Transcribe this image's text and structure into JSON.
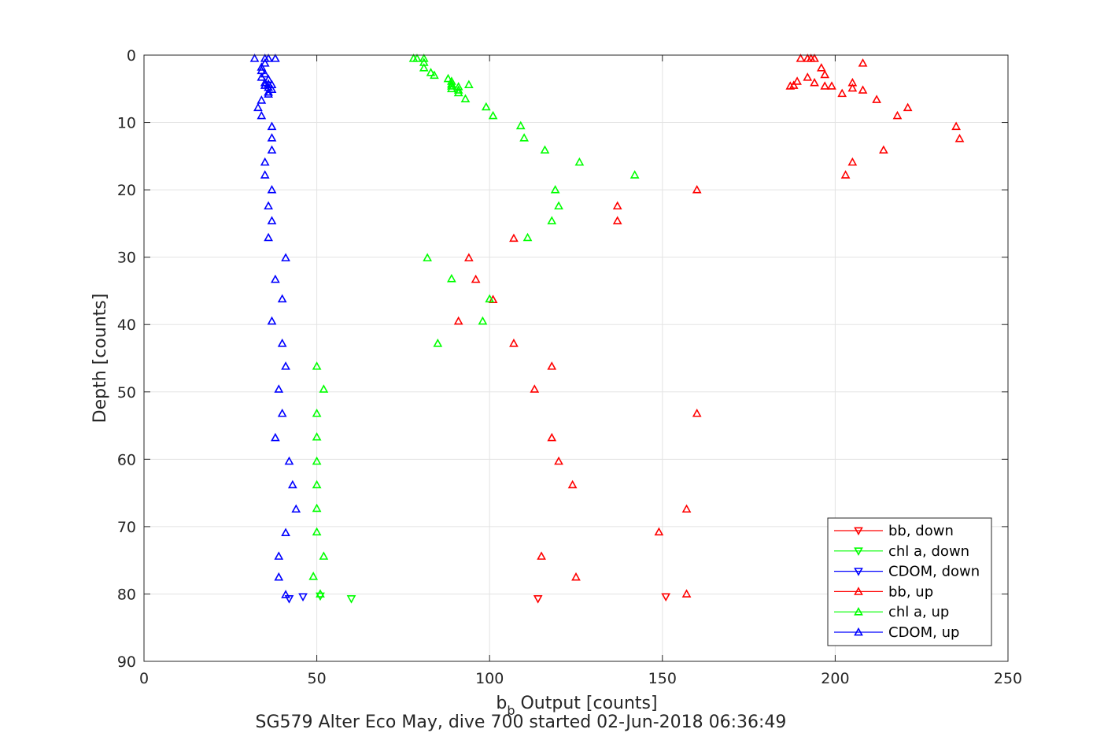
{
  "chart_data": {
    "type": "scatter",
    "title": "",
    "xlabel": "b_b Output [counts]",
    "xlabel_main": "b",
    "xlabel_sub": "b",
    "xlabel_rest": " Output [counts]",
    "ylabel": "Depth [counts]",
    "caption": "SG579 Alter Eco May, dive 700 started 02-Jun-2018 06:36:49",
    "xlim": [
      0,
      250
    ],
    "ylim": [
      0,
      90
    ],
    "y_reversed": true,
    "grid": true,
    "xticks": [
      0,
      50,
      100,
      150,
      200,
      250
    ],
    "yticks": [
      0,
      10,
      20,
      30,
      40,
      50,
      60,
      70,
      80,
      90
    ],
    "legend_position": "bottom-right",
    "series": [
      {
        "name": "bb, down",
        "color": "#ff0000",
        "marker": "triangle-down",
        "points": [
          [
            151,
            80.4
          ],
          [
            114,
            80.7
          ]
        ]
      },
      {
        "name": "chl a, down",
        "color": "#00ff00",
        "marker": "triangle-down",
        "points": [
          [
            51,
            80.3
          ],
          [
            60,
            80.7
          ]
        ]
      },
      {
        "name": "CDOM, down",
        "color": "#0000ff",
        "marker": "triangle-down",
        "points": [
          [
            46,
            80.4
          ],
          [
            42,
            80.7
          ]
        ]
      },
      {
        "name": "bb, up",
        "color": "#ff0000",
        "marker": "triangle-up",
        "points": [
          [
            190,
            0.5
          ],
          [
            192,
            0.5
          ],
          [
            193,
            0.5
          ],
          [
            194,
            0.5
          ],
          [
            208,
            1.2
          ],
          [
            196,
            1.9
          ],
          [
            197,
            2.9
          ],
          [
            192,
            3.3
          ],
          [
            189,
            3.9
          ],
          [
            194,
            4.1
          ],
          [
            205,
            4.1
          ],
          [
            188,
            4.5
          ],
          [
            187,
            4.6
          ],
          [
            197,
            4.6
          ],
          [
            199,
            4.6
          ],
          [
            205,
            4.9
          ],
          [
            208,
            5.2
          ],
          [
            202,
            5.7
          ],
          [
            212,
            6.6
          ],
          [
            221,
            7.8
          ],
          [
            218,
            9.0
          ],
          [
            235,
            10.6
          ],
          [
            236,
            12.4
          ],
          [
            214,
            14.1
          ],
          [
            205,
            15.9
          ],
          [
            203,
            17.8
          ],
          [
            160,
            20.0
          ],
          [
            137,
            22.4
          ],
          [
            137,
            24.6
          ],
          [
            107,
            27.2
          ],
          [
            94,
            30.1
          ],
          [
            96,
            33.3
          ],
          [
            101,
            36.3
          ],
          [
            91,
            39.5
          ],
          [
            107,
            42.8
          ],
          [
            118,
            46.2
          ],
          [
            113,
            49.6
          ],
          [
            160,
            53.2
          ],
          [
            118,
            56.8
          ],
          [
            120,
            60.3
          ],
          [
            124,
            63.8
          ],
          [
            157,
            67.4
          ],
          [
            149,
            70.8
          ],
          [
            115,
            74.4
          ],
          [
            125,
            77.5
          ],
          [
            157,
            80.0
          ]
        ]
      },
      {
        "name": "chl a, up",
        "color": "#00ff00",
        "marker": "triangle-up",
        "points": [
          [
            78,
            0.5
          ],
          [
            79,
            0.5
          ],
          [
            81,
            0.5
          ],
          [
            81,
            1.1
          ],
          [
            81,
            1.9
          ],
          [
            83,
            2.6
          ],
          [
            84,
            3.0
          ],
          [
            88,
            3.5
          ],
          [
            89,
            3.9
          ],
          [
            89,
            4.3
          ],
          [
            89,
            4.6
          ],
          [
            89,
            5.0
          ],
          [
            91,
            4.7
          ],
          [
            94,
            4.4
          ],
          [
            91,
            5.2
          ],
          [
            91,
            5.6
          ],
          [
            93,
            6.5
          ],
          [
            99,
            7.7
          ],
          [
            101,
            9.0
          ],
          [
            109,
            10.5
          ],
          [
            110,
            12.3
          ],
          [
            116,
            14.1
          ],
          [
            126,
            15.9
          ],
          [
            142,
            17.8
          ],
          [
            119,
            20.0
          ],
          [
            120,
            22.4
          ],
          [
            118,
            24.6
          ],
          [
            111,
            27.1
          ],
          [
            82,
            30.1
          ],
          [
            89,
            33.2
          ],
          [
            100,
            36.2
          ],
          [
            98,
            39.5
          ],
          [
            85,
            42.8
          ],
          [
            50,
            46.2
          ],
          [
            52,
            49.6
          ],
          [
            50,
            53.2
          ],
          [
            50,
            56.7
          ],
          [
            50,
            60.3
          ],
          [
            50,
            63.8
          ],
          [
            50,
            67.3
          ],
          [
            50,
            70.8
          ],
          [
            52,
            74.4
          ],
          [
            49,
            77.4
          ],
          [
            51,
            80.0
          ]
        ]
      },
      {
        "name": "CDOM, up",
        "color": "#0000ff",
        "marker": "triangle-up",
        "points": [
          [
            32,
            0.5
          ],
          [
            35,
            0.5
          ],
          [
            36,
            0.5
          ],
          [
            38,
            0.5
          ],
          [
            35,
            1.2
          ],
          [
            34,
            1.8
          ],
          [
            34,
            2.3
          ],
          [
            35,
            2.8
          ],
          [
            34,
            3.3
          ],
          [
            36,
            3.6
          ],
          [
            35,
            4.1
          ],
          [
            35,
            4.5
          ],
          [
            36,
            4.3
          ],
          [
            37,
            4.4
          ],
          [
            36,
            4.8
          ],
          [
            37,
            5.1
          ],
          [
            36,
            5.5
          ],
          [
            36,
            5.8
          ],
          [
            34,
            6.7
          ],
          [
            33,
            7.8
          ],
          [
            34,
            9.0
          ],
          [
            37,
            10.6
          ],
          [
            37,
            12.3
          ],
          [
            37,
            14.1
          ],
          [
            35,
            15.9
          ],
          [
            35,
            17.8
          ],
          [
            37,
            20.0
          ],
          [
            36,
            22.4
          ],
          [
            37,
            24.6
          ],
          [
            36,
            27.1
          ],
          [
            41,
            30.1
          ],
          [
            38,
            33.3
          ],
          [
            40,
            36.2
          ],
          [
            37,
            39.5
          ],
          [
            40,
            42.8
          ],
          [
            41,
            46.2
          ],
          [
            39,
            49.6
          ],
          [
            40,
            53.2
          ],
          [
            38,
            56.8
          ],
          [
            42,
            60.3
          ],
          [
            43,
            63.8
          ],
          [
            44,
            67.4
          ],
          [
            41,
            70.9
          ],
          [
            39,
            74.4
          ],
          [
            39,
            77.5
          ],
          [
            41,
            80.1
          ]
        ]
      }
    ]
  }
}
